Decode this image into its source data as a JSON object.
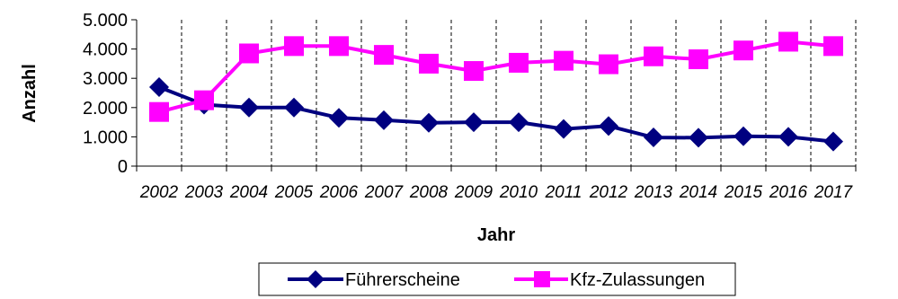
{
  "chart_data": {
    "type": "line",
    "title": "",
    "xlabel": "Jahr",
    "ylabel": "Anzahl",
    "x": [
      "2002",
      "2003",
      "2004",
      "2005",
      "2006",
      "2007",
      "2008",
      "2009",
      "2010",
      "2011",
      "2012",
      "2013",
      "2014",
      "2015",
      "2016",
      "2017"
    ],
    "y_ticks": [
      "0",
      "1.000",
      "2.000",
      "3.000",
      "4.000",
      "5.000"
    ],
    "ylim": [
      0,
      5000
    ],
    "grid": "vertical-dashed",
    "legend_position": "bottom",
    "series": [
      {
        "name": "Führerscheine",
        "color": "#000080",
        "marker": "diamond",
        "values": [
          2700,
          2100,
          2000,
          2000,
          1650,
          1570,
          1480,
          1500,
          1500,
          1270,
          1370,
          980,
          970,
          1020,
          1000,
          840
        ]
      },
      {
        "name": "Kfz-Zulassungen",
        "color": "#ff00ff",
        "marker": "square",
        "values": [
          1850,
          2250,
          3850,
          4100,
          4100,
          3800,
          3500,
          3250,
          3530,
          3600,
          3480,
          3750,
          3650,
          3950,
          4250,
          4100
        ]
      }
    ]
  }
}
